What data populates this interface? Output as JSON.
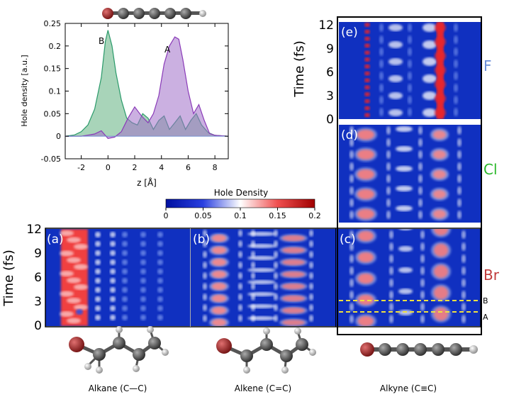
{
  "chart_data": [
    {
      "type": "area",
      "panel": "inset",
      "xlabel": "z [Å]",
      "ylabel": "Hole density [a.u.]",
      "xlim": [
        -3.2,
        9
      ],
      "ylim": [
        -0.05,
        0.25
      ],
      "xticks": [
        "-2",
        "0",
        "2",
        "4",
        "6",
        "8"
      ],
      "yticks": [
        "-0.05",
        "0",
        "0.05",
        "0.1",
        "0.15",
        "0.2",
        "0.25"
      ],
      "grid": false,
      "series": [
        {
          "name": "A",
          "color": "#a070c8",
          "x": [
            -3.2,
            -2,
            -1,
            -0.5,
            0,
            0.5,
            1,
            1.5,
            2,
            2.5,
            3,
            3.4,
            3.8,
            4.2,
            4.6,
            5.0,
            5.3,
            5.6,
            6.0,
            6.4,
            6.8,
            7.2,
            7.6,
            8,
            9
          ],
          "y": [
            0,
            0.0,
            0.005,
            0.012,
            -0.005,
            -0.002,
            0.01,
            0.04,
            0.065,
            0.045,
            0.03,
            0.05,
            0.09,
            0.16,
            0.2,
            0.22,
            0.215,
            0.17,
            0.1,
            0.05,
            0.07,
            0.035,
            0.006,
            0.002,
            0
          ]
        },
        {
          "name": "B",
          "color": "#60b080",
          "x": [
            -3.2,
            -2.5,
            -2,
            -1.5,
            -1,
            -0.5,
            -0.2,
            0,
            0.3,
            0.6,
            1,
            1.4,
            1.8,
            2.2,
            2.6,
            3.0,
            3.4,
            3.8,
            4.2,
            4.6,
            5.0,
            5.4,
            5.8,
            6.2,
            6.6,
            7,
            7.5,
            8,
            9
          ],
          "y": [
            0,
            0.003,
            0.01,
            0.025,
            0.06,
            0.13,
            0.21,
            0.235,
            0.2,
            0.14,
            0.08,
            0.04,
            0.03,
            0.025,
            0.05,
            0.04,
            0.015,
            0.035,
            0.045,
            0.015,
            0.03,
            0.045,
            0.015,
            0.035,
            0.05,
            0.025,
            0.008,
            0.002,
            0
          ]
        }
      ],
      "annotations": [
        "A",
        "B"
      ]
    },
    {
      "type": "heatmap",
      "panel": "colorbar",
      "title": "Hole Density",
      "ticks": [
        "0",
        "0.05",
        "0.1",
        "0.15",
        "0.2"
      ],
      "range": [
        0,
        0.2
      ]
    },
    {
      "type": "heatmap",
      "panel": "time-maps",
      "ylabel": "Time (fs)",
      "yticks": [
        "0",
        "3",
        "6",
        "9",
        "12"
      ],
      "ylim": [
        0,
        12
      ],
      "panels": [
        "(a)",
        "(b)",
        "(c)",
        "(d)",
        "(e)"
      ],
      "halogens": [
        "F",
        "Cl",
        "Br"
      ],
      "halogen_colors": [
        "#6a8ed8",
        "#2ab82a",
        "#c03a3a"
      ],
      "molecules": [
        "Alkane (C—C)",
        "Alkene (C=C)",
        "Alkyne (C≡C)"
      ],
      "cut_labels": [
        "B",
        "A"
      ],
      "cut_times": [
        3.0,
        1.6
      ]
    }
  ]
}
